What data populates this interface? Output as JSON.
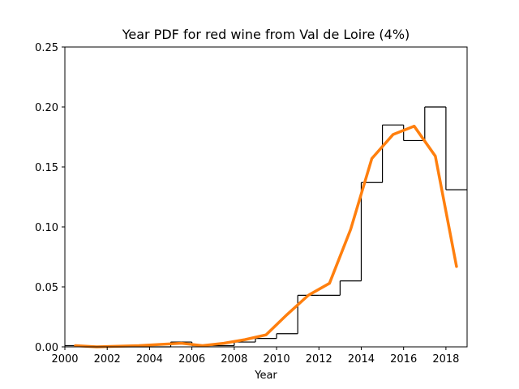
{
  "chart_data": {
    "type": "line",
    "title": "Year PDF for red wine from Val de Loire (4%)",
    "xlabel": "Year",
    "ylabel": "",
    "xlim": [
      2000,
      2019
    ],
    "ylim": [
      0,
      0.25
    ],
    "x_ticks": [
      2000,
      2002,
      2004,
      2006,
      2008,
      2010,
      2012,
      2014,
      2016,
      2018
    ],
    "x_tick_labels": [
      "2000",
      "2002",
      "2004",
      "2006",
      "2008",
      "2010",
      "2012",
      "2014",
      "2016",
      "2018"
    ],
    "y_ticks": [
      0.0,
      0.05,
      0.1,
      0.15,
      0.2,
      0.25
    ],
    "y_tick_labels": [
      "0.00",
      "0.05",
      "0.10",
      "0.15",
      "0.20",
      "0.25"
    ],
    "grid": false,
    "series": [
      {
        "kind": "step-histogram",
        "color": "#000000",
        "bin_edges": [
          2000,
          2001,
          2002,
          2003,
          2004,
          2005,
          2006,
          2007,
          2008,
          2009,
          2010,
          2011,
          2012,
          2013,
          2014,
          2015,
          2016,
          2017,
          2018,
          2019
        ],
        "values": [
          0.001,
          0.0,
          0.0,
          0.0,
          0.0,
          0.004,
          0.001,
          0.001,
          0.004,
          0.007,
          0.011,
          0.043,
          0.043,
          0.055,
          0.137,
          0.185,
          0.172,
          0.2,
          0.131
        ]
      },
      {
        "kind": "line",
        "color": "#ff7f0e",
        "x": [
          2000.5,
          2001.5,
          2002.5,
          2003.5,
          2004.5,
          2005.5,
          2006.5,
          2007.5,
          2008.5,
          2009.5,
          2010.5,
          2011.5,
          2012.5,
          2013.5,
          2014.5,
          2015.5,
          2016.5,
          2017.5,
          2018.5
        ],
        "y": [
          0.001,
          0.0,
          0.0005,
          0.001,
          0.002,
          0.003,
          0.001,
          0.003,
          0.006,
          0.01,
          0.027,
          0.043,
          0.053,
          0.098,
          0.157,
          0.177,
          0.184,
          0.159,
          0.067
        ]
      }
    ]
  }
}
